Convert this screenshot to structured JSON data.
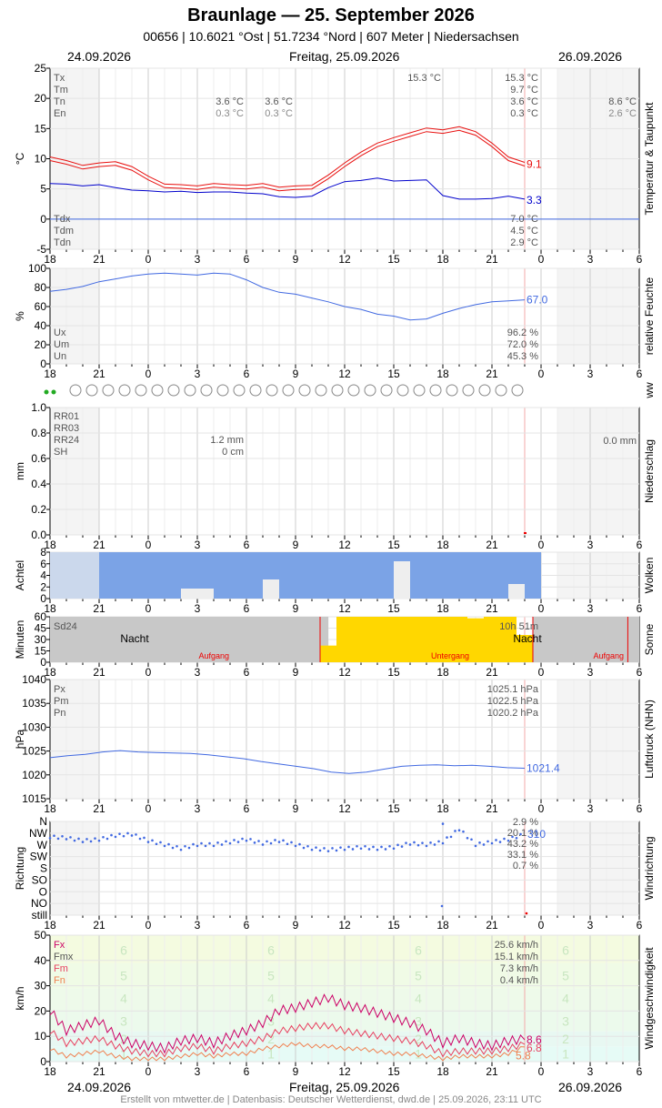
{
  "header": {
    "title": "Braunlage  —  25. September 2026",
    "subtitle": "00656  |  10.6021 °Ost  |  51.7234 °Nord  |  607 Meter  |  Niedersachsen",
    "date_left": "24.09.2026",
    "date_center": "Freitag, 25.09.2026",
    "date_right": "26.09.2026"
  },
  "footer": "Erstellt von mtwetter.de | Datenbasis: Deutscher Wetterdienst, dwd.de | 25.09.2026, 23:11 UTC",
  "hour_ticks": [
    "18",
    "21",
    "0",
    "3",
    "6",
    "9",
    "12",
    "15",
    "18",
    "21",
    "0",
    "3",
    "6"
  ],
  "colors": {
    "temp": "#e8100f",
    "dew": "#0000cc",
    "blue": "#4169e1",
    "grid": "#dddddd",
    "cloud": "#7ba3e6",
    "sun": "#ffd700",
    "wind_fx": "#cc0066",
    "wind_fm": "#e84060",
    "wind_fn": "#f08050"
  },
  "chart_data": [
    {
      "name": "temperature",
      "type": "line",
      "side_label": "Temperatur & Taupunkt",
      "ylabel": "°C",
      "ylim": [
        -5,
        25
      ],
      "yticks": [
        "25",
        "20",
        "15",
        "10",
        "5",
        "0",
        "-5"
      ],
      "stats_top": [
        [
          "Tx",
          "15.3 °C"
        ],
        [
          "Tm",
          "9.7 °C"
        ],
        [
          "Tn",
          "3.6 °C"
        ],
        [
          "En",
          "0.3 °C"
        ]
      ],
      "stats_bottom": [
        [
          "Tdx",
          "7.0 °C"
        ],
        [
          "Tdm",
          "4.5 °C"
        ],
        [
          "Tdn",
          "2.9 °C"
        ]
      ],
      "extra_labels": {
        "tx_mid": "15.3 °C",
        "tn_a": "3.6 °C",
        "tn_b": "3.6 °C",
        "en_a": "0.3 °C",
        "en_b": "0.3 °C",
        "tn_right": "8.6 °C",
        "en_right": "2.6 °C"
      },
      "x_hours": [
        0,
        1,
        2,
        3,
        4,
        5,
        6,
        7,
        8,
        9,
        10,
        11,
        12,
        13,
        14,
        15,
        16,
        17,
        18,
        19,
        20,
        21,
        22,
        23,
        24,
        25,
        26,
        27,
        28,
        29
      ],
      "series": [
        {
          "key": "t",
          "values": [
            10,
            9.4,
            8.6,
            9.0,
            9.2,
            8.4,
            6.8,
            5.5,
            5.4,
            5.2,
            5.6,
            5.4,
            5.3,
            5.6,
            5.0,
            5.2,
            5.3,
            7.0,
            9.0,
            10.8,
            12.3,
            13.2,
            14.0,
            14.8,
            14.5,
            15.0,
            14.2,
            12.3,
            10.0,
            9.1
          ]
        },
        {
          "key": "td",
          "values": [
            5.9,
            5.8,
            5.5,
            5.7,
            5.2,
            4.8,
            4.7,
            4.5,
            4.6,
            4.4,
            4.5,
            4.5,
            4.3,
            4.2,
            3.7,
            3.6,
            3.8,
            5.2,
            6.2,
            6.4,
            6.8,
            6.3,
            6.4,
            6.5,
            3.9,
            3.3,
            3.3,
            3.4,
            3.8,
            3.3
          ]
        }
      ],
      "end_labels": [
        "9.1",
        "3.3"
      ]
    },
    {
      "name": "humidity",
      "type": "line",
      "side_label": "relative Feuchte",
      "ylabel": "%",
      "ylim": [
        0,
        100
      ],
      "yticks": [
        "100",
        "80",
        "60",
        "40",
        "20",
        "0"
      ],
      "stats": [
        [
          "Ux",
          "96.2 %"
        ],
        [
          "Um",
          "72.0 %"
        ],
        [
          "Un",
          "45.3 %"
        ]
      ],
      "values": [
        76,
        78,
        81,
        86,
        89,
        92,
        94,
        95,
        94,
        93,
        95,
        94,
        88,
        80,
        75,
        73,
        69,
        65,
        60,
        57,
        52,
        50,
        46,
        47,
        53,
        58,
        62,
        65,
        66,
        67
      ],
      "end_label": "67.0"
    },
    {
      "name": "weather",
      "type": "symbols",
      "side_label": "ww",
      "count": 29
    },
    {
      "name": "precipitation",
      "type": "bar",
      "side_label": "Niederschlag",
      "ylabel": "mm",
      "ylim": [
        0,
        1
      ],
      "yticks": [
        "1.0",
        "0.8",
        "0.6",
        "0.4",
        "0.2",
        "0.0"
      ],
      "stats": [
        [
          "RR01",
          ""
        ],
        [
          "RR03",
          ""
        ],
        [
          "RR24",
          "1.2 mm"
        ],
        [
          "SH",
          "0 cm"
        ]
      ],
      "right_label": "0.0 mm"
    },
    {
      "name": "clouds",
      "type": "bar",
      "side_label": "Wolken",
      "ylabel": "Achtel",
      "ylim": [
        0,
        8
      ],
      "yticks": [
        "8",
        "6",
        "4",
        "2",
        "0"
      ],
      "values": [
        8,
        8,
        8,
        8,
        8,
        8,
        8,
        8,
        8,
        8,
        8,
        8,
        8,
        8,
        8,
        8,
        8,
        8,
        8,
        8,
        8,
        8,
        8,
        8,
        8,
        8,
        8,
        8,
        8,
        8
      ]
    },
    {
      "name": "sunshine",
      "type": "bar",
      "side_label": "Sonne",
      "ylabel": "Minuten",
      "ylim": [
        0,
        60
      ],
      "yticks": [
        "60",
        "45",
        "30",
        "15",
        "0"
      ],
      "stats": [
        [
          "Sd24",
          "10h 51m"
        ]
      ],
      "night_label": "Nacht",
      "sunrise_label": "Aufgang",
      "sunset_label": "Untergang",
      "values": [
        22,
        60,
        60,
        60,
        60,
        60,
        60,
        60,
        60,
        58,
        60,
        60,
        36
      ]
    },
    {
      "name": "pressure",
      "type": "line",
      "side_label": "Luftdruck (NHN)",
      "ylabel": "hPa",
      "ylim": [
        1015,
        1040
      ],
      "yticks": [
        "1040",
        "1035",
        "1030",
        "1025",
        "1020",
        "1015"
      ],
      "stats": [
        [
          "Px",
          "1025.1 hPa"
        ],
        [
          "Pm",
          "1022.5 hPa"
        ],
        [
          "Pn",
          "1020.2 hPa"
        ]
      ],
      "values": [
        1023.6,
        1024.0,
        1024.3,
        1024.8,
        1025.1,
        1024.8,
        1024.7,
        1024.6,
        1024.5,
        1024.2,
        1023.8,
        1023.4,
        1022.8,
        1022.3,
        1021.8,
        1021.3,
        1020.6,
        1020.3,
        1020.6,
        1021.2,
        1021.8,
        1022.0,
        1022.1,
        1021.9,
        1022.0,
        1021.8,
        1021.5,
        1021.4
      ],
      "end_label": "1021.4"
    },
    {
      "name": "wind_direction",
      "type": "scatter",
      "side_label": "Windrichtung",
      "ylabel": "Richtung",
      "categories": [
        "N",
        "NW",
        "W",
        "SW",
        "S",
        "SO",
        "O",
        "NO",
        "still"
      ],
      "stats": [
        [
          "",
          "2.9 %"
        ],
        [
          "",
          "20.1 %"
        ],
        [
          "",
          "43.2 %"
        ],
        [
          "",
          "33.1 %"
        ],
        [
          "",
          "0.7 %"
        ]
      ],
      "end_label": "310",
      "values": [
        300,
        296,
        285,
        290,
        305,
        310,
        285,
        270,
        255,
        270,
        270,
        280,
        290,
        275,
        285,
        270,
        255,
        250,
        255,
        260,
        255,
        260,
        275,
        270,
        280,
        330,
        270,
        280,
        290,
        310
      ]
    },
    {
      "name": "wind_speed",
      "type": "line",
      "side_label": "Windgeschwindigkeit",
      "ylabel": "km/h",
      "ylim": [
        0,
        50
      ],
      "yticks": [
        "50",
        "40",
        "30",
        "20",
        "10",
        "0"
      ],
      "stats": [
        [
          "Fx",
          "25.6 km/h"
        ],
        [
          "Fmx",
          "15.1 km/h"
        ],
        [
          "Fm",
          "7.3 km/h"
        ],
        [
          "Fn",
          "0.4 km/h"
        ]
      ],
      "bft": [
        "6",
        "5",
        "4",
        "3",
        "2",
        "1"
      ],
      "series": [
        {
          "key": "fx",
          "values": [
            20,
            12,
            14,
            16,
            10,
            7,
            6,
            5,
            8,
            9,
            7,
            10,
            12,
            15,
            20,
            21,
            23,
            25,
            22,
            21,
            19,
            17,
            15,
            12,
            7,
            9,
            7,
            6,
            8,
            8.6
          ]
        },
        {
          "key": "fm",
          "values": [
            12,
            7,
            8,
            9,
            6,
            4,
            3,
            3,
            5,
            6,
            4,
            6,
            7,
            9,
            12,
            13,
            14,
            14,
            12,
            11,
            10,
            9,
            8,
            6,
            3,
            4,
            4,
            4,
            5,
            6.8
          ]
        },
        {
          "key": "fn",
          "values": [
            5,
            2,
            3,
            4,
            2,
            1,
            1,
            1,
            2,
            3,
            2,
            3,
            3,
            5,
            6,
            7,
            6,
            6,
            5,
            5,
            4,
            3,
            3,
            2,
            1,
            2,
            2,
            2,
            3,
            5.8
          ]
        }
      ],
      "end_labels": [
        "8.6",
        "6.8",
        "5.8"
      ]
    }
  ]
}
